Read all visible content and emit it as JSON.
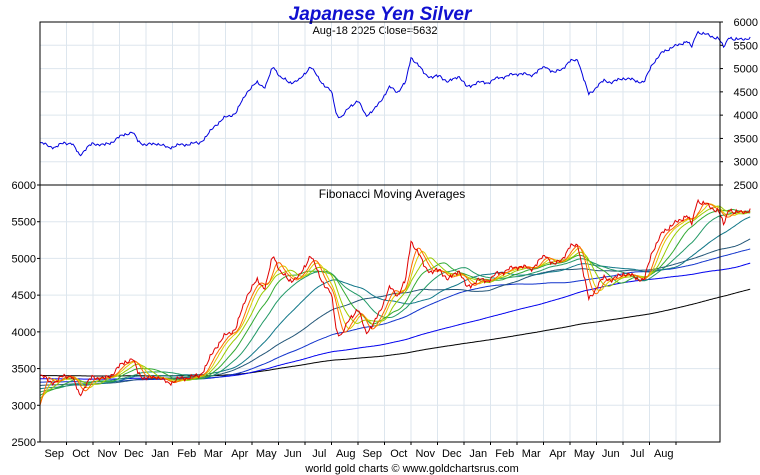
{
  "chart_data": {
    "title": "Japanese Yen Silver",
    "subtitle": "Aug-18  2025   Close=5632",
    "footer": "world gold charts © www.goldchartsrus.com",
    "top_panel": {
      "type": "line",
      "ylim": [
        2500,
        6000
      ],
      "yticks": [
        6000,
        5500,
        5000,
        4500,
        4000,
        3500,
        3000,
        2500
      ],
      "axis_side": "right",
      "grid": true,
      "series": [
        {
          "color": "#0000dd",
          "points": [
            [
              0,
              3400
            ],
            [
              0.3,
              3350
            ],
            [
              0.6,
              3300
            ],
            [
              0.9,
              3420
            ],
            [
              1.2,
              3380
            ],
            [
              1.5,
              3150
            ],
            [
              1.7,
              3250
            ],
            [
              2.0,
              3400
            ],
            [
              2.4,
              3350
            ],
            [
              2.8,
              3450
            ],
            [
              3.2,
              3600
            ],
            [
              3.5,
              3620
            ],
            [
              3.7,
              3450
            ],
            [
              4.0,
              3350
            ],
            [
              4.4,
              3400
            ],
            [
              4.8,
              3300
            ],
            [
              5.2,
              3350
            ],
            [
              5.6,
              3380
            ],
            [
              6.0,
              3400
            ],
            [
              6.3,
              3550
            ],
            [
              6.6,
              3780
            ],
            [
              7.0,
              3950
            ],
            [
              7.4,
              4050
            ],
            [
              7.8,
              4500
            ],
            [
              8.2,
              4700
            ],
            [
              8.5,
              4600
            ],
            [
              8.8,
              5050
            ],
            [
              9.1,
              4800
            ],
            [
              9.4,
              4700
            ],
            [
              9.8,
              4750
            ],
            [
              10.2,
              5050
            ],
            [
              10.5,
              4800
            ],
            [
              10.8,
              4600
            ],
            [
              11.0,
              4500
            ],
            [
              11.2,
              4000
            ],
            [
              11.4,
              3950
            ],
            [
              11.7,
              4200
            ],
            [
              12.0,
              4300
            ],
            [
              12.3,
              4000
            ],
            [
              12.6,
              4100
            ],
            [
              12.9,
              4350
            ],
            [
              13.2,
              4600
            ],
            [
              13.5,
              4500
            ],
            [
              13.8,
              4700
            ],
            [
              14.0,
              5250
            ],
            [
              14.3,
              5050
            ],
            [
              14.5,
              4900
            ],
            [
              14.8,
              4800
            ],
            [
              15.1,
              4850
            ],
            [
              15.4,
              4700
            ],
            [
              15.8,
              4850
            ],
            [
              16.1,
              4600
            ],
            [
              16.5,
              4700
            ],
            [
              16.9,
              4700
            ],
            [
              17.3,
              4800
            ],
            [
              17.7,
              4850
            ],
            [
              18.1,
              4900
            ],
            [
              18.5,
              4850
            ],
            [
              18.8,
              4950
            ],
            [
              19.1,
              5050
            ],
            [
              19.4,
              4900
            ],
            [
              19.7,
              5000
            ],
            [
              20.0,
              5150
            ],
            [
              20.3,
              5200
            ],
            [
              20.5,
              4800
            ],
            [
              20.7,
              4450
            ],
            [
              21.0,
              4600
            ],
            [
              21.3,
              4750
            ],
            [
              21.6,
              4700
            ],
            [
              22.0,
              4800
            ],
            [
              22.4,
              4750
            ],
            [
              22.8,
              4700
            ],
            [
              23.1,
              5100
            ],
            [
              23.5,
              5350
            ],
            [
              23.8,
              5450
            ],
            [
              24.1,
              5500
            ],
            [
              24.4,
              5600
            ],
            [
              24.6,
              5450
            ],
            [
              24.8,
              5800
            ],
            [
              25.0,
              5750
            ],
            [
              25.3,
              5700
            ],
            [
              25.6,
              5650
            ],
            [
              25.8,
              5450
            ],
            [
              26.0,
              5700
            ],
            [
              26.2,
              5600
            ],
            [
              26.5,
              5650
            ],
            [
              26.8,
              5632
            ]
          ]
        }
      ]
    },
    "bottom_panel": {
      "type": "line",
      "label": "Fibonacci Moving Averages",
      "ylim": [
        2500,
        6000
      ],
      "yticks": [
        6000,
        5500,
        5000,
        4500,
        4000,
        3500,
        3000,
        2500
      ],
      "axis_side": "left",
      "grid": true,
      "price_series_color": "#e00000",
      "ma_colors": [
        "#ff6600",
        "#ddcc00",
        "#99cc00",
        "#33aa33",
        "#229966",
        "#117788",
        "#225577",
        "#1133cc",
        "#0000ee",
        "#000000"
      ],
      "ma_periods": [
        3,
        5,
        8,
        13,
        21,
        34,
        55,
        89,
        144,
        233
      ]
    },
    "x_axis": {
      "labels": [
        "Sep",
        "Oct",
        "Nov",
        "Dec",
        "Jan",
        "Feb",
        "Mar",
        "Apr",
        "May",
        "Jun",
        "Jul",
        "Aug",
        "Sep",
        "Oct",
        "Nov",
        "Dec",
        "Jan",
        "Feb",
        "Mar",
        "Apr",
        "May",
        "Jun",
        "Jul",
        "Aug"
      ]
    }
  }
}
